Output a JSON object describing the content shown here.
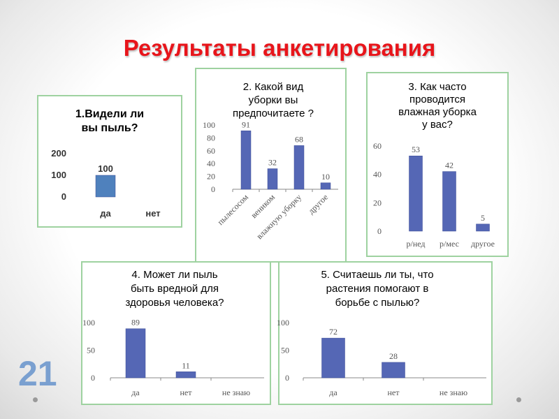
{
  "slide": {
    "title": "Результаты анкетирования",
    "page_number": "21"
  },
  "colors": {
    "title": "#e8151b",
    "bar": "#5567b5",
    "bar_chart1": "#4f81bd",
    "panel_border": "#9ed2a0",
    "page_number": "#7aa0d0"
  },
  "chart_data": [
    {
      "type": "bar",
      "title_lines": [
        "1.Видели ли",
        "вы пыль?"
      ],
      "categories": [
        "да",
        "нет"
      ],
      "values": [
        100,
        null
      ],
      "data_labels": [
        "100",
        ""
      ],
      "yticks": [
        "0",
        "100",
        "200"
      ],
      "ylim": [
        0,
        200
      ]
    },
    {
      "type": "bar",
      "title_lines": [
        "2. Какой вид",
        "уборки вы",
        "предпочитаете ?"
      ],
      "categories": [
        "пылесосом",
        "веником",
        "влажную уборку",
        "другое"
      ],
      "values": [
        91,
        32,
        68,
        10
      ],
      "data_labels": [
        "91",
        "32",
        "68",
        "10"
      ],
      "yticks": [
        "0",
        "20",
        "40",
        "60",
        "80",
        "100"
      ],
      "ylim": [
        0,
        100
      ]
    },
    {
      "type": "bar",
      "title_lines": [
        "3. Как часто",
        "проводится",
        "влажная уборка",
        "у вас?"
      ],
      "categories": [
        "р/нед",
        "р/мес",
        "другое"
      ],
      "values": [
        53,
        42,
        5
      ],
      "data_labels": [
        "53",
        "42",
        "5"
      ],
      "yticks": [
        "0",
        "20",
        "40",
        "60"
      ],
      "ylim": [
        0,
        60
      ]
    },
    {
      "type": "bar",
      "title_lines": [
        "4. Может ли пыль",
        "быть вредной для",
        "здоровья человека?"
      ],
      "categories": [
        "да",
        "нет",
        "не знаю"
      ],
      "values": [
        89,
        11,
        null
      ],
      "data_labels": [
        "89",
        "11",
        ""
      ],
      "yticks": [
        "0",
        "50",
        "100"
      ],
      "ylim": [
        0,
        100
      ]
    },
    {
      "type": "bar",
      "title_lines": [
        "5. Считаешь ли ты, что",
        "растения помогают в",
        "борьбе с пылью?"
      ],
      "categories": [
        "да",
        "нет",
        "не знаю"
      ],
      "values": [
        72,
        28,
        null
      ],
      "data_labels": [
        "72",
        "28",
        ""
      ],
      "yticks": [
        "0",
        "50",
        "100"
      ],
      "ylim": [
        0,
        100
      ]
    }
  ]
}
